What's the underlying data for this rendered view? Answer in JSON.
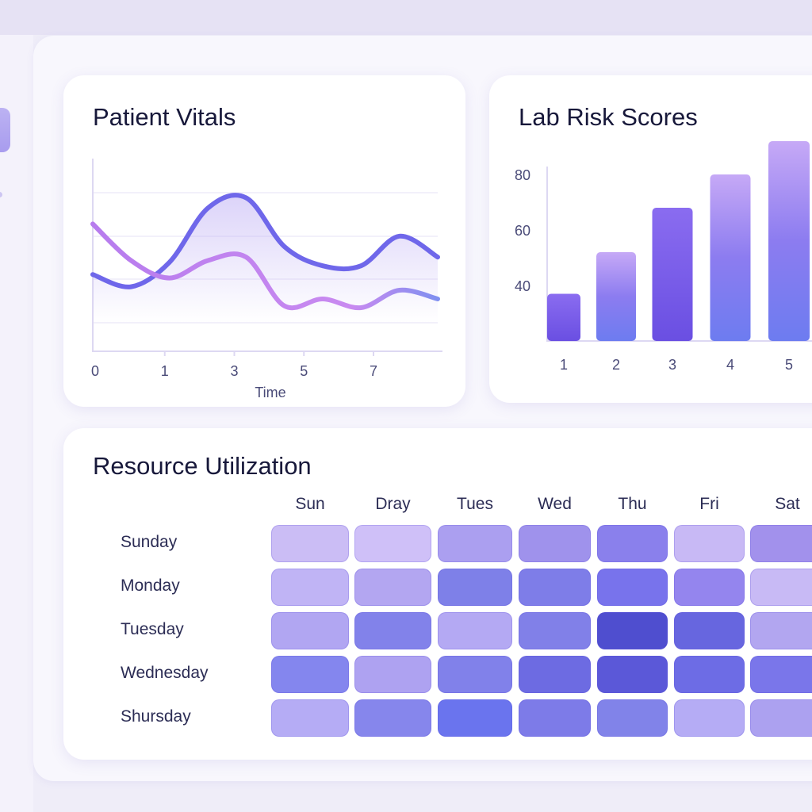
{
  "colors": {
    "accent": "#6c5ce7",
    "line_blue": "#6f67ea",
    "line_pink": "#c184f0"
  },
  "vitals": {
    "title": "Patient Vitals",
    "chart_data": {
      "type": "line",
      "title": "Patient Vitals",
      "xlabel": "Time",
      "ylabel": "",
      "x_tick_labels": [
        "0",
        "1",
        "3",
        "5",
        "7"
      ],
      "ylim": [
        0,
        100
      ],
      "grid": true,
      "series": [
        {
          "color": "#6f67ea",
          "values": [
            44,
            37,
            51,
            82,
            88,
            60,
            49,
            49,
            66,
            54
          ]
        },
        {
          "color": "#c184f0",
          "values": [
            73,
            52,
            42,
            52,
            54,
            26,
            30,
            25,
            35,
            30
          ]
        }
      ]
    }
  },
  "lab": {
    "title": "Lab Risk Scores",
    "chart_data": {
      "type": "bar",
      "title": "Lab Risk Scores",
      "categories": [
        "1",
        "2",
        "3",
        "4",
        "5"
      ],
      "values": [
        37,
        52,
        68,
        80,
        92
      ],
      "y_tick_labels": [
        "40",
        "60",
        "80"
      ],
      "ylim": [
        20,
        100
      ],
      "grid": false
    }
  },
  "resource": {
    "title": "Resource Utilization",
    "chart_data": {
      "type": "heatmap",
      "title": "Resource Utilization",
      "columns": [
        "Sun",
        "Dray",
        "Tues",
        "Wed",
        "Thu",
        "Fri",
        "Sat"
      ],
      "rows": [
        "Sunday",
        "Monday",
        "Tuesday",
        "Wednesday",
        "Shursday"
      ],
      "cell_colors": [
        [
          "#cbbdf5",
          "#cfc0f8",
          "#ab9ff0",
          "#9f92ec",
          "#8a80ec",
          "#c8b9f5",
          "#a291ec"
        ],
        [
          "#c0b4f5",
          "#b3a6f1",
          "#7e80e8",
          "#7e7de8",
          "#7873ec",
          "#9485ee",
          "#c8baf5"
        ],
        [
          "#b1a6f2",
          "#8282ea",
          "#b4a9f3",
          "#8180e8",
          "#4f4ecf",
          "#6766df",
          "#b2a6f0"
        ],
        [
          "#8486ee",
          "#aea2f1",
          "#8181ea",
          "#6d6be2",
          "#5b58d8",
          "#6d6ce5",
          "#7a76ea"
        ],
        [
          "#b5acf5",
          "#8686ec",
          "#6a74ee",
          "#7d7be8",
          "#8183e9",
          "#b5acf5",
          "#aca1f0"
        ]
      ]
    }
  }
}
